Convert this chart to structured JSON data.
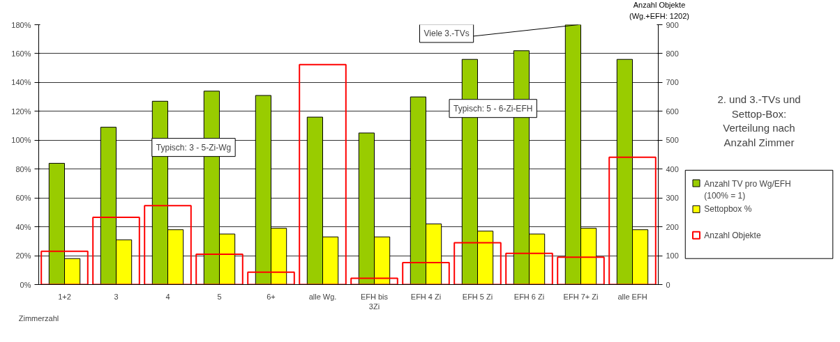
{
  "chart_data": {
    "type": "bar",
    "title": "2. und 3.-TVs und Settop-Box: Verteilung nach Anzahl Zimmer",
    "xlabel": "Zimmerzahl",
    "y2label": "Anzahl Objekte (Wg.+EFH: 1202)",
    "categories": [
      "1+2",
      "3",
      "4",
      "5",
      "6+",
      "alle Wg.",
      "EFH bis 3Zi",
      "EFH 4 Zi",
      "EFH 5 Zi",
      "EFH 6 Zi",
      "EFH 7+ Zi",
      "alle EFH"
    ],
    "series": [
      {
        "name": "Anzahl TV pro Wg/EFH (100% = 1)",
        "color": "#99cc00",
        "values": [
          84,
          109,
          127,
          134,
          131,
          116,
          105,
          130,
          156,
          162,
          180,
          156
        ]
      },
      {
        "name": "Settopbox %",
        "color": "#ffff00",
        "values": [
          18,
          31,
          38,
          35,
          39,
          33,
          33,
          42,
          37,
          35,
          39,
          38
        ]
      },
      {
        "name": "Anzahl Objekte",
        "color": "#ff0000",
        "axis": "y2",
        "values": [
          115,
          233,
          273,
          105,
          43,
          762,
          22,
          76,
          145,
          108,
          95,
          441
        ]
      }
    ],
    "ylim": [
      0,
      180
    ],
    "yticks": [
      {
        "value": 0,
        "label": "0%"
      },
      {
        "value": 20,
        "label": "20%"
      },
      {
        "value": 40,
        "label": "40%"
      },
      {
        "value": 60,
        "label": "60%"
      },
      {
        "value": 80,
        "label": "80%"
      },
      {
        "value": 100,
        "label": "100%"
      },
      {
        "value": 120,
        "label": "120%"
      },
      {
        "value": 140,
        "label": "140%"
      },
      {
        "value": 160,
        "label": "160%"
      },
      {
        "value": 180,
        "label": "180%"
      }
    ],
    "y2lim": [
      0,
      900
    ],
    "y2ticks": [
      0,
      100,
      200,
      300,
      400,
      500,
      600,
      700,
      800,
      900
    ],
    "annotations": [
      "Typisch: 3 - 5-Zi-Wg",
      "Typisch: 5 - 6-Zi-EFH",
      {
        "text": "Viele 3.-TVs",
        "x": "EFH 7+ Zi",
        "y": 180
      }
    ],
    "grid": "y",
    "legend": "right"
  }
}
